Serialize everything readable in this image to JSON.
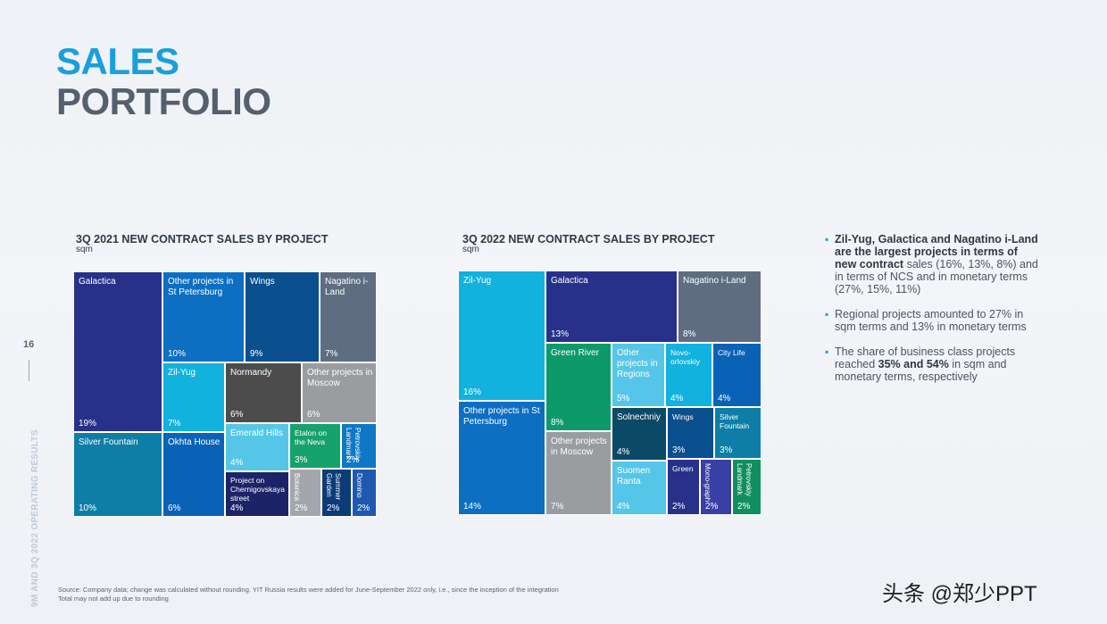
{
  "page": {
    "title_line1": "SALES",
    "title_line2": "PORTFOLIO",
    "page_number": "16",
    "side_label": "9M AND 3Q 2022 OPERATING RESULTS",
    "source_line1": "Source: Company data; change was calculated without rounding. YIT Russia results were added for June-September 2022 only, i.e., since the inception of the integration",
    "source_line2": "Total may not add up due to rounding",
    "watermark": "头条 @郑少PPT"
  },
  "bullets": [
    {
      "parts": [
        {
          "text": "Zil-Yug, Galactica and Nagatino i-Land are the largest projects in terms of new contract",
          "bold": true
        },
        {
          "text": " sales (16%, 13%, 8%) and in terms of NCS and in monetary terms (27%, 15%, 11%)",
          "bold": false
        }
      ]
    },
    {
      "parts": [
        {
          "text": "Regional projects amounted to 27% in sqm terms and 13% in monetary terms",
          "bold": false
        }
      ]
    },
    {
      "parts": [
        {
          "text": "The share of business class projects reached ",
          "bold": false
        },
        {
          "text": "35% and 54%",
          "bold": true
        },
        {
          "text": " in sqm and monetary terms, respectively",
          "bold": false
        }
      ]
    }
  ],
  "chart_data": [
    {
      "type": "treemap",
      "title": "3Q 2021 NEW CONTRACT SALES BY PROJECT",
      "unit": "sqm",
      "items": [
        {
          "name": "Galactica",
          "value": 19,
          "label": "19%",
          "color": "#27318a"
        },
        {
          "name": "Silver Fountain",
          "value": 10,
          "label": "10%",
          "color": "#0e7ea6"
        },
        {
          "name": "Other projects in St Petersburg",
          "value": 10,
          "label": "10%",
          "color": "#0d6fc2"
        },
        {
          "name": "Wings",
          "value": 9,
          "label": "9%",
          "color": "#0a4f8e"
        },
        {
          "name": "Nagatino i-Land",
          "value": 7,
          "label": "7%",
          "color": "#5e6e80"
        },
        {
          "name": "Zil-Yug",
          "value": 7,
          "label": "7%",
          "color": "#12b2de"
        },
        {
          "name": "Okhta House",
          "value": 6,
          "label": "6%",
          "color": "#0a62b6"
        },
        {
          "name": "Normandy",
          "value": 6,
          "label": "6%",
          "color": "#4c4c4c"
        },
        {
          "name": "Other projects in Moscow",
          "value": 6,
          "label": "6%",
          "color": "#9a9ca0"
        },
        {
          "name": "Emerald Hills",
          "value": 4,
          "label": "4%",
          "color": "#56c6e8"
        },
        {
          "name": "Project on Chernigovskaya street",
          "value": 4,
          "label": "4%",
          "color": "#1c2467"
        },
        {
          "name": "Etalon on the Neva",
          "value": 3,
          "label": "3%",
          "color": "#16a26c"
        },
        {
          "name": "Petrovskiy Landmark",
          "value": 2,
          "label": "2%",
          "color": "#0e78c6"
        },
        {
          "name": "Botanica",
          "value": 2,
          "label": "2%",
          "color": "#a3a6ab"
        },
        {
          "name": "Summer Garden",
          "value": 2,
          "label": "2%",
          "color": "#0b3c78"
        },
        {
          "name": "Domino",
          "value": 2,
          "label": "2%",
          "color": "#1e59b0"
        }
      ]
    },
    {
      "type": "treemap",
      "title": "3Q 2022 NEW CONTRACT SALES BY PROJECT",
      "unit": "sqm",
      "items": [
        {
          "name": "Zil-Yug",
          "value": 16,
          "label": "16%",
          "color": "#12b2de"
        },
        {
          "name": "Other projects in St Petersburg",
          "value": 14,
          "label": "14%",
          "color": "#0d6fc2"
        },
        {
          "name": "Galactica",
          "value": 13,
          "label": "13%",
          "color": "#27318a"
        },
        {
          "name": "Nagatino i-Land",
          "value": 8,
          "label": "8%",
          "color": "#5e6e80"
        },
        {
          "name": "Green River",
          "value": 8,
          "label": "8%",
          "color": "#0d9a6a"
        },
        {
          "name": "Other projects in Regions",
          "value": 5,
          "label": "5%",
          "color": "#56c6e8"
        },
        {
          "name": "Novo-orlovskiy",
          "value": 4,
          "label": "4%",
          "color": "#12b2de"
        },
        {
          "name": "City Life",
          "value": 4,
          "label": "4%",
          "color": "#0a62b6"
        },
        {
          "name": "Other projects in Moscow",
          "value": 7,
          "label": "7%",
          "color": "#9a9ca0"
        },
        {
          "name": "Solnechniy",
          "value": 4,
          "label": "4%",
          "color": "#0a4a66"
        },
        {
          "name": "Wings",
          "value": 3,
          "label": "3%",
          "color": "#0a4f8e"
        },
        {
          "name": "Silver Fountain",
          "value": 3,
          "label": "3%",
          "color": "#0e7ea6"
        },
        {
          "name": "Suomen Ranta",
          "value": 4,
          "label": "4%",
          "color": "#56c6e8"
        },
        {
          "name": "Green",
          "value": 2,
          "label": "2%",
          "color": "#27318a"
        },
        {
          "name": "Mono-graph",
          "value": 2,
          "label": "2%",
          "color": "#3a3fa6"
        },
        {
          "name": "Petrovskiy Landmark",
          "value": 2,
          "label": "2%",
          "color": "#0f8f60"
        }
      ]
    }
  ]
}
